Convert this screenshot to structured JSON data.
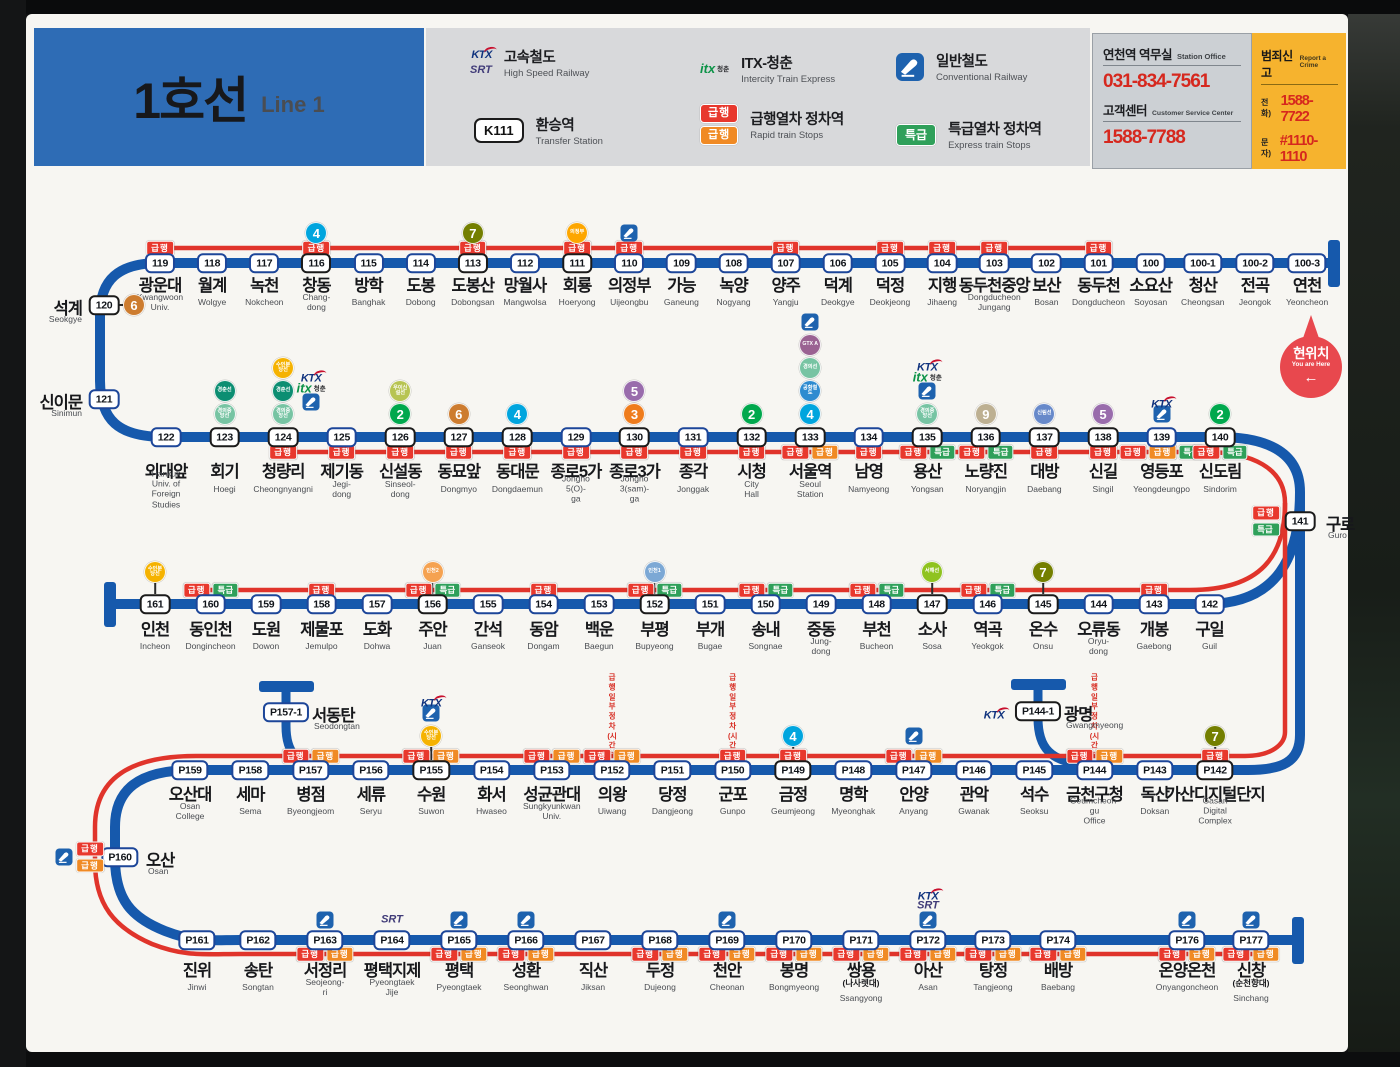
{
  "title": {
    "ko": "1호선",
    "en": "Line 1"
  },
  "legend": {
    "high_speed": {
      "ko": "고속철도",
      "en": "High Speed Railway"
    },
    "itx": {
      "ko": "ITX-청춘",
      "en": "Intercity Train Express"
    },
    "conventional": {
      "ko": "일반철도",
      "en": "Conventional Railway"
    },
    "transfer": {
      "badge": "K111",
      "ko": "환승역",
      "en": "Transfer Station"
    },
    "rapid": {
      "ko": "급행열차 정차역",
      "en": "Rapid train Stops"
    },
    "express": {
      "ko": "특급열차 정차역",
      "en": "Express train Stops"
    }
  },
  "contact": {
    "office_ko": "연천역 역무실",
    "office_en": "Station Office",
    "office_tel": "031-834-7561",
    "cs_ko": "고객센터",
    "cs_en": "Customer Service Center",
    "cs_tel": "1588-7788"
  },
  "crime": {
    "ko": "범죄신고",
    "en": "Report a Crime",
    "tel_label": "전화)",
    "tel": "1588-7722",
    "sms_label": "문자)",
    "sms": "#1110-1110"
  },
  "you_are_here": {
    "ko": "현위치",
    "en": "You are Here",
    "arrow": "←"
  },
  "partial_note": "급행 일부 정차\n(시간표 참조)",
  "express_badges": {
    "R": {
      "label": "급행",
      "bg": "#E8382D"
    },
    "O": {
      "label": "급행",
      "bg": "#F08A24"
    },
    "E": {
      "label": "특급",
      "bg": "#2FA05A"
    }
  },
  "icon_defs": {
    "L2": {
      "type": "c",
      "t": "2",
      "bg": "#00A84D"
    },
    "L3": {
      "type": "c",
      "t": "3",
      "bg": "#EF7C1C"
    },
    "L4": {
      "type": "c",
      "t": "4",
      "bg": "#00A5DE"
    },
    "L5": {
      "type": "c",
      "t": "5",
      "bg": "#996CAC"
    },
    "L6": {
      "type": "c",
      "t": "6",
      "bg": "#CD7C2F"
    },
    "L7": {
      "type": "c",
      "t": "7",
      "bg": "#747F00"
    },
    "L9": {
      "type": "c",
      "t": "9",
      "bg": "#BDB092"
    },
    "suin": {
      "type": "c",
      "t": "수인분당선",
      "bg": "#F5B200"
    },
    "gyeongchun": {
      "type": "c",
      "t": "경춘선",
      "bg": "#0C8E72"
    },
    "gyeongui": {
      "type": "c",
      "t": "경의중앙선",
      "bg": "#77C4A3"
    },
    "gyeonguiline": {
      "type": "c",
      "t": "경의선",
      "bg": "#77C4A3"
    },
    "uisinseol": {
      "type": "c",
      "t": "우이신설선",
      "bg": "#B7C452"
    },
    "uijeongbu": {
      "type": "c",
      "t": "의정부",
      "bg": "#FDA600"
    },
    "gtxa": {
      "type": "c",
      "t": "GTX A",
      "bg": "#9A6292"
    },
    "arex": {
      "type": "c",
      "t": "공항철도",
      "bg": "#2E8BD0"
    },
    "sillim": {
      "type": "c",
      "t": "신림선",
      "bg": "#6789CA"
    },
    "incheon1": {
      "type": "c",
      "t": "인천1",
      "bg": "#7CA8D5"
    },
    "incheon2": {
      "type": "c",
      "t": "인천2",
      "bg": "#F5A251"
    },
    "seohae": {
      "type": "c",
      "t": "서해선",
      "bg": "#8FC31F"
    },
    "ktx": {
      "type": "l",
      "t": "KTX"
    },
    "srt": {
      "type": "l",
      "t": "SRT"
    },
    "itx": {
      "type": "l",
      "t": "itx",
      "t2": "청춘"
    },
    "rail": {
      "type": "rail",
      "t": "일반철도"
    }
  },
  "lines": {
    "row1": [
      {
        "n": "119",
        "ko": "광운대",
        "en": "Kwangwoon Univ.",
        "b": [
          "R"
        ]
      },
      {
        "n": "118",
        "ko": "월계",
        "en": "Wolgye"
      },
      {
        "n": "117",
        "ko": "녹천",
        "en": "Nokcheon"
      },
      {
        "n": "116",
        "ko": "창동",
        "en": "Chang-dong",
        "b": [
          "R"
        ],
        "ic": [
          "L4"
        ],
        "tr": true
      },
      {
        "n": "115",
        "ko": "방학",
        "en": "Banghak"
      },
      {
        "n": "114",
        "ko": "도봉",
        "en": "Dobong"
      },
      {
        "n": "113",
        "ko": "도봉산",
        "en": "Dobongsan",
        "b": [
          "R"
        ],
        "ic": [
          "L7"
        ],
        "tr": true
      },
      {
        "n": "112",
        "ko": "망월사",
        "en": "Mangwolsa"
      },
      {
        "n": "111",
        "ko": "회룡",
        "en": "Hoeryong",
        "b": [
          "R"
        ],
        "ic": [
          "uijeongbu"
        ],
        "tr": true
      },
      {
        "n": "110",
        "ko": "의정부",
        "en": "Uijeongbu",
        "b": [
          "R"
        ],
        "ic": [
          "rail"
        ]
      },
      {
        "n": "109",
        "ko": "가능",
        "en": "Ganeung"
      },
      {
        "n": "108",
        "ko": "녹양",
        "en": "Nogyang"
      },
      {
        "n": "107",
        "ko": "양주",
        "en": "Yangju",
        "b": [
          "R"
        ]
      },
      {
        "n": "106",
        "ko": "덕계",
        "en": "Deokgye"
      },
      {
        "n": "105",
        "ko": "덕정",
        "en": "Deokjeong",
        "b": [
          "R"
        ]
      },
      {
        "n": "104",
        "ko": "지행",
        "en": "Jihaeng",
        "b": [
          "R"
        ]
      },
      {
        "n": "103",
        "ko": "동두천중앙",
        "en": "Dongducheon\nJungang",
        "b": [
          "R"
        ]
      },
      {
        "n": "102",
        "ko": "보산",
        "en": "Bosan"
      },
      {
        "n": "101",
        "ko": "동두천",
        "en": "Dongducheon",
        "b": [
          "R"
        ]
      },
      {
        "n": "100",
        "ko": "소요산",
        "en": "Soyosan"
      },
      {
        "n": "100-1",
        "ko": "청산",
        "en": "Cheongsan"
      },
      {
        "n": "100-2",
        "ko": "전곡",
        "en": "Jeongok"
      },
      {
        "n": "100-3",
        "ko": "연천",
        "en": "Yeoncheon"
      }
    ],
    "row2": [
      {
        "n": "122",
        "ko": "외대앞",
        "en": "Hankuk Univ. of\nForeign Studies"
      },
      {
        "n": "123",
        "ko": "회기",
        "en": "Hoegi",
        "ic": [
          "gyeongui",
          "gyeongchun"
        ],
        "tr": true
      },
      {
        "n": "124",
        "ko": "청량리",
        "en": "Cheongnyangni",
        "b": [
          "R"
        ],
        "ic": [
          "gyeongui",
          "gyeongchun",
          "suin"
        ],
        "ic2": [
          "rail",
          "itx",
          "ktx"
        ],
        "tr": true
      },
      {
        "n": "125",
        "ko": "제기동",
        "en": "Jegi-dong",
        "b": [
          "R"
        ]
      },
      {
        "n": "126",
        "ko": "신설동",
        "en": "Sinseol-dong",
        "b": [
          "R"
        ],
        "ic": [
          "L2",
          "uisinseol"
        ],
        "tr": true
      },
      {
        "n": "127",
        "ko": "동묘앞",
        "en": "Dongmyo",
        "b": [
          "R"
        ],
        "ic": [
          "L6"
        ],
        "tr": true
      },
      {
        "n": "128",
        "ko": "동대문",
        "en": "Dongdaemun",
        "b": [
          "R"
        ],
        "ic": [
          "L4"
        ],
        "tr": true
      },
      {
        "n": "129",
        "ko": "종로5가",
        "en": "Jongno 5(O)-ga",
        "b": [
          "R"
        ]
      },
      {
        "n": "130",
        "ko": "종로3가",
        "en": "Jongno 3(sam)-ga",
        "b": [
          "R"
        ],
        "ic": [
          "L3",
          "L5"
        ],
        "tr": true
      },
      {
        "n": "131",
        "ko": "종각",
        "en": "Jonggak",
        "b": [
          "R"
        ]
      },
      {
        "n": "132",
        "ko": "시청",
        "en": "City Hall",
        "b": [
          "R"
        ],
        "ic": [
          "L2"
        ],
        "tr": true
      },
      {
        "n": "133",
        "ko": "서울역",
        "en": "Seoul Station",
        "b": [
          "R",
          "O"
        ],
        "ic": [
          "L4",
          "arex",
          "gyeonguiline",
          "gtxa",
          "rail"
        ],
        "tr": true
      },
      {
        "n": "134",
        "ko": "남영",
        "en": "Namyeong",
        "b": [
          "R"
        ]
      },
      {
        "n": "135",
        "ko": "용산",
        "en": "Yongsan",
        "b": [
          "R",
          "E"
        ],
        "ic": [
          "gyeongui",
          "rail",
          "itx",
          "ktx"
        ],
        "tr": true
      },
      {
        "n": "136",
        "ko": "노량진",
        "en": "Noryangjin",
        "b": [
          "R",
          "E"
        ],
        "ic": [
          "L9"
        ],
        "tr": true
      },
      {
        "n": "137",
        "ko": "대방",
        "en": "Daebang",
        "b": [
          "R"
        ],
        "ic": [
          "sillim"
        ],
        "tr": true
      },
      {
        "n": "138",
        "ko": "신길",
        "en": "Singil",
        "b": [
          "R"
        ],
        "ic": [
          "L5"
        ],
        "tr": true
      },
      {
        "n": "139",
        "ko": "영등포",
        "en": "Yeongdeungpo",
        "b": [
          "R",
          "O",
          "E"
        ],
        "ic": [
          "rail",
          "ktx"
        ]
      },
      {
        "n": "140",
        "ko": "신도림",
        "en": "Sindorim",
        "b": [
          "R",
          "E"
        ],
        "ic": [
          "L2"
        ],
        "tr": true
      }
    ],
    "row3": [
      {
        "n": "161",
        "ko": "인천",
        "en": "Incheon",
        "ic": [
          "suin"
        ],
        "tr": true
      },
      {
        "n": "160",
        "ko": "동인천",
        "en": "Dongincheon",
        "b": [
          "R",
          "E"
        ]
      },
      {
        "n": "159",
        "ko": "도원",
        "en": "Dowon"
      },
      {
        "n": "158",
        "ko": "제물포",
        "en": "Jemulpo",
        "b": [
          "R"
        ]
      },
      {
        "n": "157",
        "ko": "도화",
        "en": "Dohwa"
      },
      {
        "n": "156",
        "ko": "주안",
        "en": "Juan",
        "b": [
          "R",
          "E"
        ],
        "ic": [
          "incheon2"
        ],
        "tr": true
      },
      {
        "n": "155",
        "ko": "간석",
        "en": "Ganseok"
      },
      {
        "n": "154",
        "ko": "동암",
        "en": "Dongam",
        "b": [
          "R"
        ]
      },
      {
        "n": "153",
        "ko": "백운",
        "en": "Baegun"
      },
      {
        "n": "152",
        "ko": "부평",
        "en": "Bupyeong",
        "b": [
          "R",
          "E"
        ],
        "ic": [
          "incheon1"
        ],
        "tr": true
      },
      {
        "n": "151",
        "ko": "부개",
        "en": "Bugae"
      },
      {
        "n": "150",
        "ko": "송내",
        "en": "Songnae",
        "b": [
          "R",
          "E"
        ]
      },
      {
        "n": "149",
        "ko": "중동",
        "en": "Jung-dong"
      },
      {
        "n": "148",
        "ko": "부천",
        "en": "Bucheon",
        "b": [
          "R",
          "E"
        ]
      },
      {
        "n": "147",
        "ko": "소사",
        "en": "Sosa",
        "ic": [
          "seohae"
        ],
        "tr": true
      },
      {
        "n": "146",
        "ko": "역곡",
        "en": "Yeokgok",
        "b": [
          "R",
          "E"
        ]
      },
      {
        "n": "145",
        "ko": "온수",
        "en": "Onsu",
        "ic": [
          "L7"
        ],
        "tr": true
      },
      {
        "n": "144",
        "ko": "오류동",
        "en": "Oryu-dong"
      },
      {
        "n": "143",
        "ko": "개봉",
        "en": "Gaebong",
        "b": [
          "R"
        ]
      },
      {
        "n": "142",
        "ko": "구일",
        "en": "Guil"
      }
    ],
    "row4": [
      {
        "n": "P159",
        "ko": "오산대",
        "en": "Osan College"
      },
      {
        "n": "P158",
        "ko": "세마",
        "en": "Sema"
      },
      {
        "n": "P157",
        "ko": "병점",
        "en": "Byeongjeom",
        "b": [
          "R",
          "O"
        ]
      },
      {
        "n": "P156",
        "ko": "세류",
        "en": "Seryu"
      },
      {
        "n": "P155",
        "ko": "수원",
        "en": "Suwon",
        "b": [
          "R",
          "O"
        ],
        "ic": [
          "suin",
          "rail",
          "ktx"
        ],
        "tr": true
      },
      {
        "n": "P154",
        "ko": "화서",
        "en": "Hwaseo"
      },
      {
        "n": "P153",
        "ko": "성균관대",
        "en": "Sungkyunkwan\nUniv.",
        "b": [
          "R",
          "O"
        ]
      },
      {
        "n": "P152",
        "ko": "의왕",
        "en": "Uiwang",
        "b": [
          "R",
          "O"
        ],
        "note": true
      },
      {
        "n": "P151",
        "ko": "당정",
        "en": "Dangjeong"
      },
      {
        "n": "P150",
        "ko": "군포",
        "en": "Gunpo",
        "b": [
          "R"
        ],
        "note": true
      },
      {
        "n": "P149",
        "ko": "금정",
        "en": "Geumjeong",
        "b": [
          "R"
        ],
        "ic": [
          "L4"
        ],
        "tr": true
      },
      {
        "n": "P148",
        "ko": "명학",
        "en": "Myeonghak"
      },
      {
        "n": "P147",
        "ko": "안양",
        "en": "Anyang",
        "b": [
          "R",
          "O"
        ],
        "ic": [
          "rail"
        ]
      },
      {
        "n": "P146",
        "ko": "관악",
        "en": "Gwanak"
      },
      {
        "n": "P145",
        "ko": "석수",
        "en": "Seoksu"
      },
      {
        "n": "P144",
        "ko": "금천구청",
        "en": "Geumcheon-gu\nOffice",
        "b": [
          "R",
          "O"
        ],
        "note": true
      },
      {
        "n": "P143",
        "ko": "독산",
        "en": "Doksan"
      },
      {
        "n": "P142",
        "ko": "가산디지털단지",
        "en": "Gasan Digital Complex",
        "b": [
          "R"
        ],
        "ic": [
          "L7"
        ],
        "tr": true
      }
    ],
    "row5": [
      {
        "n": "P161",
        "ko": "진위",
        "en": "Jinwi"
      },
      {
        "n": "P162",
        "ko": "송탄",
        "en": "Songtan"
      },
      {
        "n": "P163",
        "ko": "서정리",
        "en": "Seojeong-ri",
        "b": [
          "R",
          "O"
        ],
        "ic": [
          "rail"
        ]
      },
      {
        "n": "P164",
        "ko": "평택지제",
        "en": "Pyeongtaek Jije",
        "ic": [
          "srt"
        ]
      },
      {
        "n": "P165",
        "ko": "평택",
        "en": "Pyeongtaek",
        "b": [
          "R",
          "O"
        ],
        "ic": [
          "rail"
        ]
      },
      {
        "n": "P166",
        "ko": "성환",
        "en": "Seonghwan",
        "b": [
          "R",
          "O"
        ],
        "ic": [
          "rail"
        ]
      },
      {
        "n": "P167",
        "ko": "직산",
        "en": "Jiksan"
      },
      {
        "n": "P168",
        "ko": "두정",
        "en": "Dujeong",
        "b": [
          "R",
          "O"
        ]
      },
      {
        "n": "P169",
        "ko": "천안",
        "en": "Cheonan",
        "b": [
          "R",
          "O"
        ],
        "ic": [
          "rail"
        ]
      },
      {
        "n": "P170",
        "ko": "봉명",
        "en": "Bongmyeong",
        "b": [
          "R",
          "O"
        ]
      },
      {
        "n": "P171",
        "ko": "쌍용",
        "sub": "(나사렛대)",
        "en": "Ssangyong",
        "b": [
          "R",
          "O"
        ]
      },
      {
        "n": "P172",
        "ko": "아산",
        "en": "Asan",
        "b": [
          "R",
          "O"
        ],
        "ic": [
          "rail",
          "srt",
          "ktx"
        ]
      },
      {
        "n": "P173",
        "ko": "탕정",
        "en": "Tangjeong",
        "b": [
          "R",
          "O"
        ]
      },
      {
        "n": "P174",
        "ko": "배방",
        "en": "Baebang",
        "b": [
          "R",
          "O"
        ]
      },
      {
        "n": "P176",
        "ko": "온양온천",
        "en": "Onyangoncheon",
        "b": [
          "R",
          "O"
        ],
        "ic": [
          "rail"
        ]
      },
      {
        "n": "P177",
        "ko": "신창",
        "sub": "(순천향대)",
        "en": "Sinchang",
        "b": [
          "R",
          "O"
        ],
        "ic": [
          "rail"
        ]
      }
    ]
  },
  "special": {
    "seokgye": {
      "n": "120",
      "ko": "석계",
      "en": "Seokgye",
      "ic": [
        "L6"
      ],
      "tr": true
    },
    "sinimun": {
      "n": "121",
      "ko": "신이문",
      "en": "Sinimun"
    },
    "guro": {
      "n": "141",
      "ko": "구로",
      "en": "Guro",
      "b": [
        "R",
        "E"
      ],
      "tr": true
    },
    "osan": {
      "n": "P160",
      "ko": "오산",
      "en": "Osan",
      "b": [
        "R",
        "O"
      ],
      "ic": [
        "rail"
      ]
    },
    "seodongtan": {
      "n": "P157-1",
      "ko": "서동탄",
      "en": "Seodongtan"
    },
    "gwangmyeong": {
      "n": "P144-1",
      "ko": "광명",
      "en": "Gwangmyeong",
      "ic": [
        "ktx"
      ],
      "tr": true
    }
  }
}
